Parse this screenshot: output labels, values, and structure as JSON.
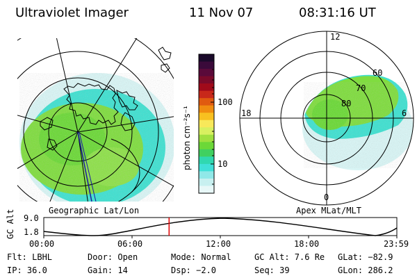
{
  "header": {
    "instrument": "Ultraviolet Imager",
    "date": "11 Nov 07",
    "time": "08:31:16 UT"
  },
  "left_map": {
    "caption": "Geographic Lat/Lon"
  },
  "right_map": {
    "caption": "Apex MLat/MLT",
    "mlt_labels": {
      "top": "12",
      "left": "18",
      "right": "6",
      "bottom": "0"
    },
    "mlat_labels": [
      "60",
      "70",
      "80"
    ]
  },
  "colorbar": {
    "unit_label": "photon cm⁻²s⁻¹",
    "tick_labels": [
      "100",
      "10"
    ],
    "scale": "log",
    "colors_top_to_bottom": [
      "#1a0a2a",
      "#3a0a3a",
      "#5a0a3a",
      "#7a0a2a",
      "#a00a1a",
      "#c8281a",
      "#e05a10",
      "#f08c10",
      "#f8c020",
      "#f8e85a",
      "#d8f060",
      "#a0e040",
      "#6cd838",
      "#40d060",
      "#30d8b0",
      "#40e0d8",
      "#90e8e8",
      "#c8f0f0",
      "#e8f8f8"
    ]
  },
  "altitude_plot": {
    "ylabel": "GC Alt",
    "ytick_top": "9.0",
    "ytick_bottom": "1.8",
    "xticks": [
      "00:00",
      "06:00",
      "12:00",
      "18:00",
      "23:59"
    ],
    "current_time_marker_hours": 8.52,
    "marker_color": "#e00000"
  },
  "info": {
    "flt": "Flt: LBHL",
    "door": "Door: Open",
    "mode": "Mode: Normal",
    "gc_alt": "GC Alt: 7.6 Re",
    "glat": "GLat: −82.9",
    "ip": "IP: 36.0",
    "gain": "Gain: 14",
    "dsp": "Dsp:   −2.0",
    "seq": "Seq: 39",
    "glon": "GLon: 286.2"
  },
  "colors": {
    "aurora_green": "#80dc40",
    "aurora_cyan": "#40e0d0",
    "haze": "#d8f4f4"
  }
}
